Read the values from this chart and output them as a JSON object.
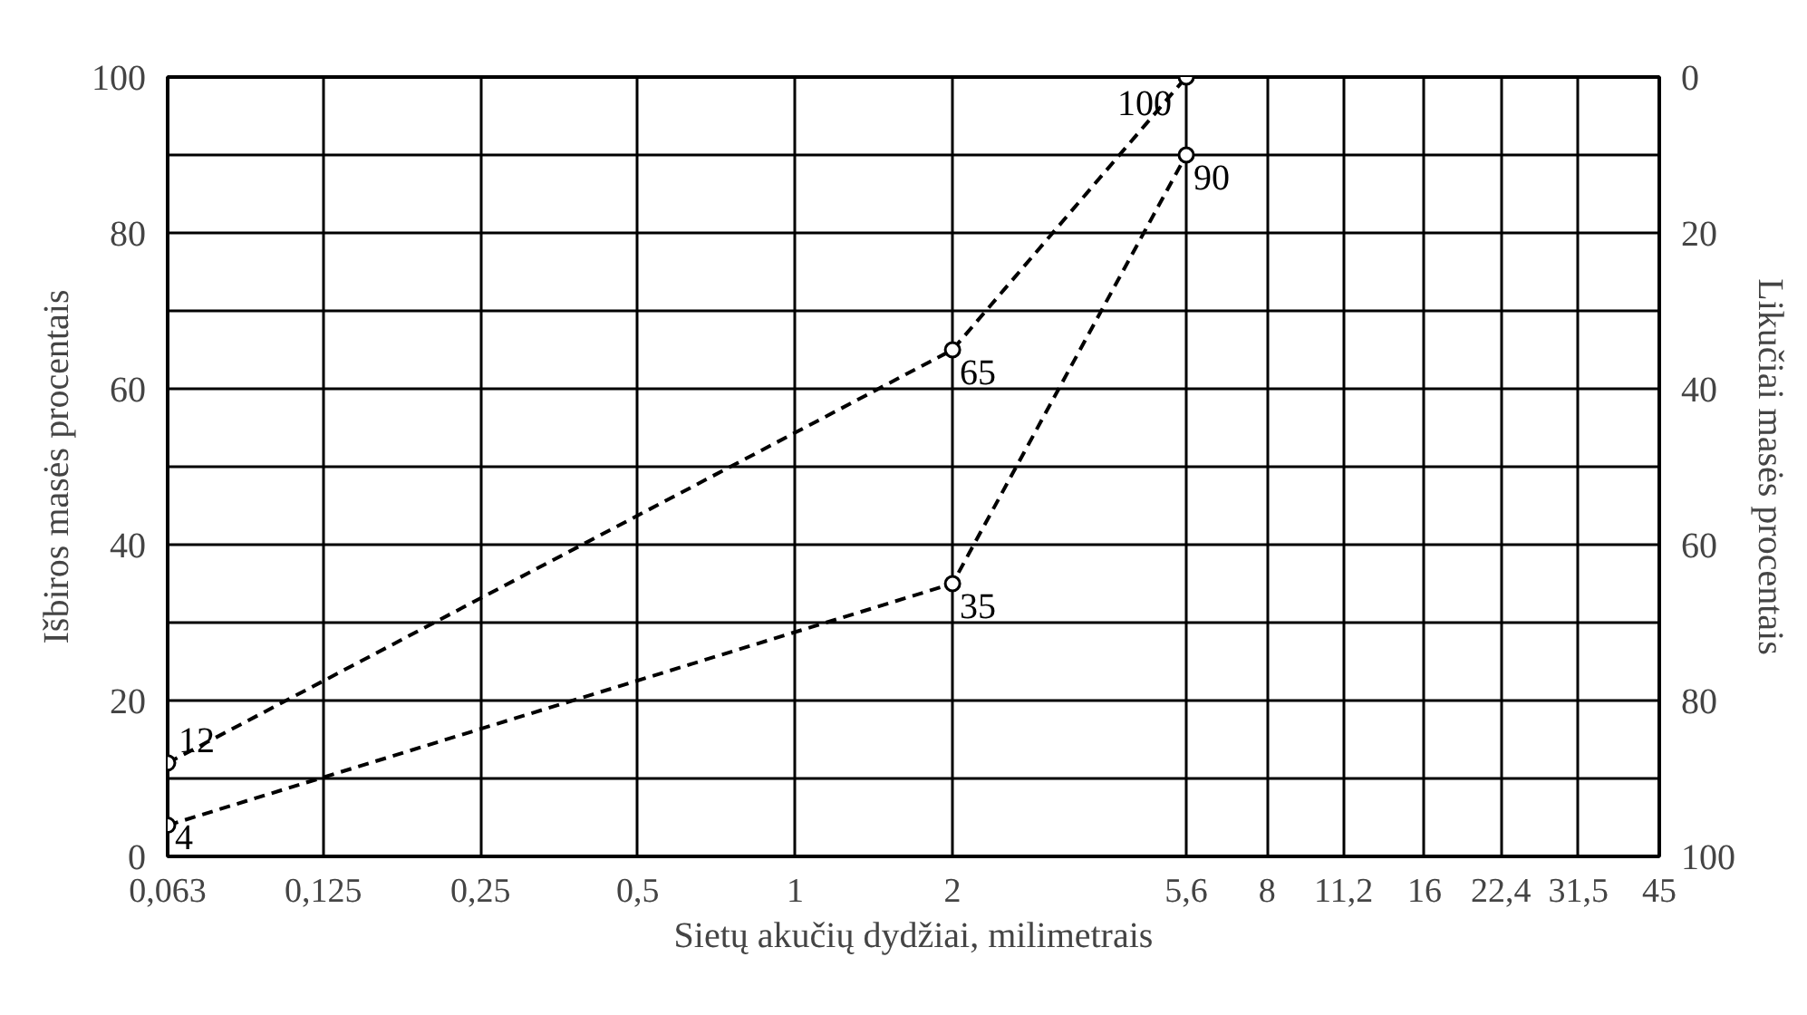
{
  "chart_data": {
    "type": "line",
    "xlabel": "Sietų akučių dydžiai, milimetrais",
    "ylabel": "Išbiros masės procentais",
    "y2label": "Likučiai masės procentais",
    "log": "x",
    "xlim": [
      0.063,
      45
    ],
    "xticks": [
      {
        "value": 0.063,
        "label": "0,063"
      },
      {
        "value": 0.125,
        "label": "0,125"
      },
      {
        "value": 0.25,
        "label": "0,25"
      },
      {
        "value": 0.5,
        "label": "0,5"
      },
      1,
      2,
      {
        "value": 5.6,
        "label": "5,6"
      },
      8,
      {
        "value": 11.2,
        "label": "11,2"
      },
      16,
      {
        "value": 22.4,
        "label": "22,4"
      },
      {
        "value": 31.5,
        "label": "31,5"
      },
      45
    ],
    "ylim": [
      0,
      100
    ],
    "yticks": [
      0,
      {
        "value": 10,
        "label": null
      },
      20,
      {
        "value": 30,
        "label": null
      },
      40,
      {
        "value": 50,
        "label": null
      },
      60,
      {
        "value": 70,
        "label": null
      },
      80,
      {
        "value": 90,
        "label": null
      },
      100
    ],
    "y2lim": [
      100,
      0
    ],
    "y2ticks": [
      0,
      20,
      40,
      60,
      80,
      100
    ],
    "x": [
      0.063,
      2,
      5.6
    ],
    "series": [
      {
        "color": "#000000",
        "values": [
          12,
          65,
          100
        ]
      },
      {
        "color": "#000000",
        "values": [
          4,
          35,
          90
        ]
      }
    ],
    "data_labels": true,
    "grid": true,
    "marker": "circle",
    "line_style": "dashed"
  }
}
